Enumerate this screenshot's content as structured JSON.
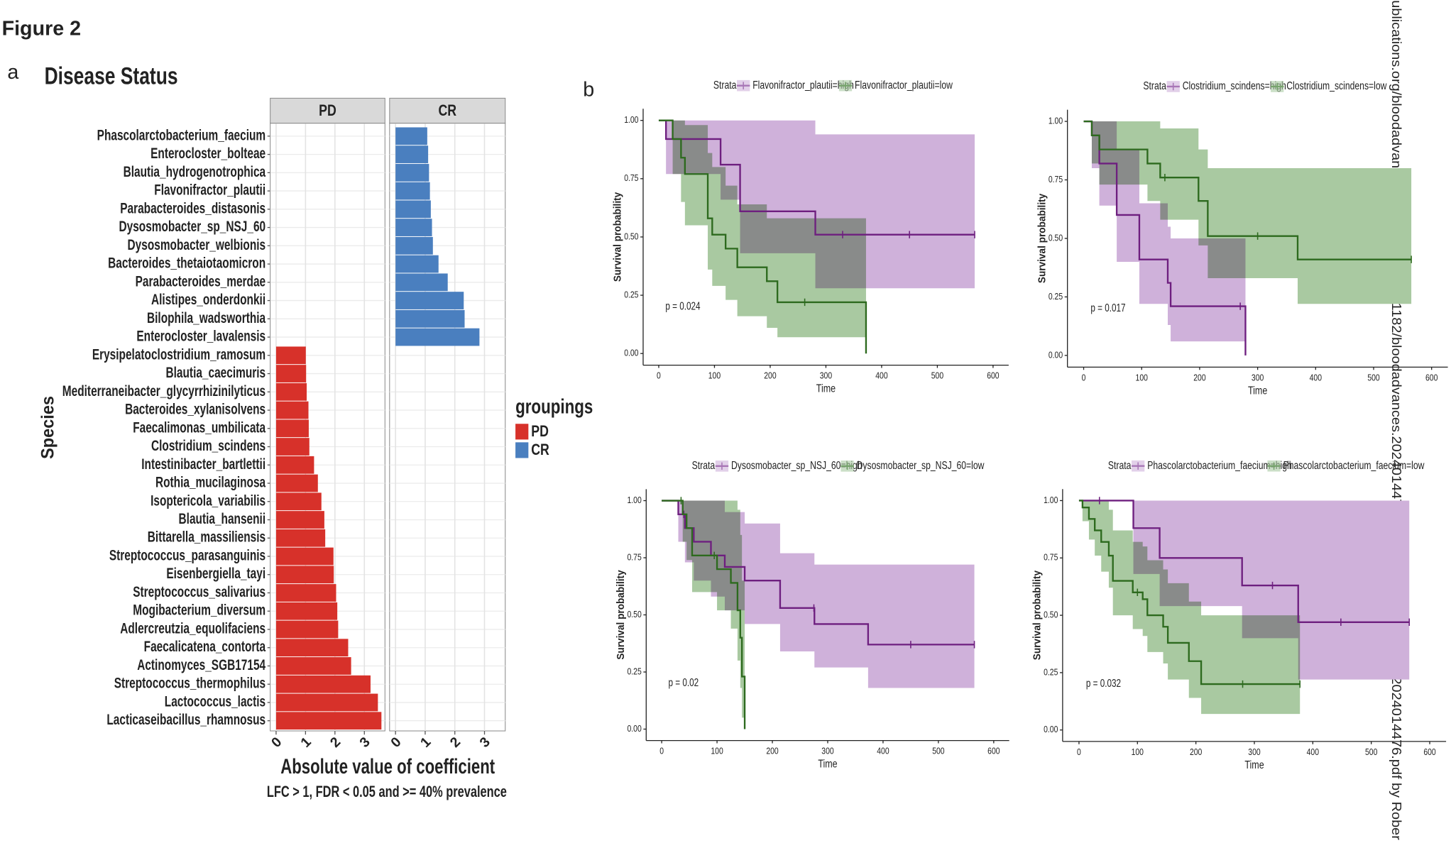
{
  "figure_title": "Figure 2",
  "watermark": "ublications.org/bloodadvances/article-pdf/doi/10.1182/bloodadvances.2024014476/2367737/bloodadvances.2024014476.pdf by Rober",
  "chart_data": [
    {
      "type": "bar",
      "orientation": "horizontal",
      "panel_label": "a",
      "title": "Disease Status",
      "facets": [
        "PD",
        "CR"
      ],
      "categories": [
        "Phascolarctobacterium_faecium",
        "Enterocloster_bolteae",
        "Blautia_hydrogenotrophica",
        "Flavonifractor_plautii",
        "Parabacteroides_distasonis",
        "Dysosmobacter_sp_NSJ_60",
        "Dysosmobacter_welbionis",
        "Bacteroides_thetaiotaomicron",
        "Parabacteroides_merdae",
        "Alistipes_onderdonkii",
        "Bilophila_wadsworthia",
        "Enterocloster_lavalensis",
        "Erysipelatoclostridium_ramosum",
        "Blautia_caecimuris",
        "Mediterraneibacter_glycyrrhizinilyticus",
        "Bacteroides_xylanisolvens",
        "Faecalimonas_umbilicata",
        "Clostridium_scindens",
        "Intestinibacter_bartlettii",
        "Rothia_mucilaginosa",
        "Isoptericola_variabilis",
        "Blautia_hansenii",
        "Bittarella_massiliensis",
        "Streptococcus_parasanguinis",
        "Eisenbergiella_tayi",
        "Streptococcus_salivarius",
        "Mogibacterium_diversum",
        "Adlercreutzia_equolifaciens",
        "Faecalicatena_contorta",
        "Actinomyces_SGB17154",
        "Streptococcus_thermophilus",
        "Lactococcus_lactis",
        "Lacticaseibacillus_rhamnosus"
      ],
      "series": [
        {
          "name": "PD",
          "color": "#d7312a",
          "values": [
            null,
            null,
            null,
            null,
            null,
            null,
            null,
            null,
            null,
            null,
            null,
            null,
            1.01,
            1.02,
            1.04,
            1.1,
            1.11,
            1.13,
            1.29,
            1.42,
            1.54,
            1.64,
            1.67,
            1.95,
            1.96,
            2.04,
            2.08,
            2.11,
            2.45,
            2.55,
            3.21,
            3.46,
            3.58
          ]
        },
        {
          "name": "CR",
          "color": "#4a7fbf",
          "values": [
            1.07,
            1.1,
            1.13,
            1.16,
            1.19,
            1.23,
            1.26,
            1.45,
            1.76,
            2.3,
            2.33,
            2.83,
            null,
            null,
            null,
            null,
            null,
            null,
            null,
            null,
            null,
            null,
            null,
            null,
            null,
            null,
            null,
            null,
            null,
            null,
            null,
            null,
            null
          ]
        }
      ],
      "xlim": [
        -0.2,
        3.7
      ],
      "xticks": [
        0,
        1,
        2,
        3
      ],
      "xlabel": "Absolute value of coefficient",
      "ylabel": "Species",
      "caption": "LFC > 1, FDR < 0.05 and >= 40% prevalence",
      "legend_title": "groupings",
      "grid": true
    },
    {
      "type": "survival",
      "panel_label": "b",
      "legend_title": "Strata",
      "annotation": "p = 0.024",
      "xlabel": "Time",
      "ylabel": "Survival probability",
      "xlim": [
        -28,
        628
      ],
      "ylim": [
        -0.05,
        1.05
      ],
      "xticks": [
        0,
        100,
        200,
        300,
        400,
        500,
        600
      ],
      "yticks": [
        {
          "value": 0,
          "label": "0.00"
        },
        0.25,
        {
          "value": 0.5,
          "label": "0.50"
        },
        0.75,
        {
          "value": 1,
          "label": "1.00"
        }
      ],
      "series": [
        {
          "name": "Flavonifractor_plautii=high",
          "color": "#6e1f7f",
          "band_color": "#cfb1da",
          "x": [
            0,
            13,
            111,
            146,
            281
          ],
          "values": [
            1,
            0.92,
            0.81,
            0.61,
            0.51
          ],
          "lower": [
            1,
            0.77,
            0.66,
            0.43,
            0.28
          ],
          "upper": [
            1,
            1,
            1,
            1,
            0.94
          ],
          "censored": [
            330,
            450,
            567
          ]
        },
        {
          "name": "Flavonifractor_plautii=low",
          "color": "#2d6a1e",
          "band_color": "#a9c9a1",
          "x": [
            0,
            25,
            40,
            47,
            88,
            96,
            120,
            141,
            194,
            213,
            372
          ],
          "values": [
            1,
            0.92,
            0.84,
            0.77,
            0.58,
            0.51,
            0.45,
            0.37,
            0.31,
            0.22,
            0
          ],
          "lower": [
            1,
            0.77,
            0.65,
            0.55,
            0.36,
            0.29,
            0.23,
            0.16,
            0.11,
            0.07,
            0
          ],
          "upper": [
            1,
            1,
            1,
            0.98,
            0.86,
            0.8,
            0.72,
            0.64,
            0.58,
            0.58,
            0.58
          ],
          "censored": [
            262
          ]
        }
      ]
    },
    {
      "type": "survival",
      "legend_title": "Strata",
      "annotation": "p = 0.017",
      "xlabel": "Time",
      "ylabel": "Survival probability",
      "xlim": [
        -28,
        628
      ],
      "ylim": [
        -0.05,
        1.05
      ],
      "xticks": [
        0,
        100,
        200,
        300,
        400,
        500,
        600
      ],
      "yticks": [
        {
          "value": 0,
          "label": "0.00"
        },
        0.25,
        {
          "value": 0.5,
          "label": "0.50"
        },
        0.75,
        {
          "value": 1,
          "label": "1.00"
        }
      ],
      "series": [
        {
          "name": "Clostridium_scindens=high",
          "color": "#6e1f7f",
          "band_color": "#cfb1da",
          "x": [
            0,
            14,
            27,
            57,
            96,
            145,
            150,
            279
          ],
          "values": [
            1,
            0.94,
            0.82,
            0.6,
            0.41,
            0.31,
            0.21,
            0
          ],
          "lower": [
            1,
            0.8,
            0.64,
            0.4,
            0.22,
            0.13,
            0.06,
            0
          ],
          "upper": [
            1,
            1,
            1,
            0.88,
            0.65,
            0.55,
            0.5,
            0.5
          ],
          "censored": [
            270
          ]
        },
        {
          "name": "Clostridium_scindens=low",
          "color": "#2d6a1e",
          "band_color": "#a9c9a1",
          "x": [
            0,
            14,
            27,
            110,
            132,
            198,
            214,
            369
          ],
          "values": [
            1,
            0.94,
            0.88,
            0.82,
            0.76,
            0.66,
            0.51,
            0.41
          ],
          "lower": [
            1,
            0.82,
            0.73,
            0.66,
            0.58,
            0.47,
            0.33,
            0.22
          ],
          "upper": [
            1,
            1,
            1,
            1,
            0.97,
            0.88,
            0.8,
            0.8
          ],
          "censored": [
            140,
            300,
            565
          ]
        }
      ]
    },
    {
      "type": "survival",
      "legend_title": "Strata",
      "annotation": "p = 0.02",
      "xlabel": "Time",
      "ylabel": "Survival probability",
      "xlim": [
        -28,
        628
      ],
      "ylim": [
        -0.05,
        1.05
      ],
      "xticks": [
        0,
        100,
        200,
        300,
        400,
        500,
        600
      ],
      "yticks": [
        {
          "value": 0,
          "label": "0.00"
        },
        0.25,
        {
          "value": 0.5,
          "label": "0.50"
        },
        0.75,
        {
          "value": 1,
          "label": "1.00"
        }
      ],
      "series": [
        {
          "name": "Dysosmobacter_sp_NSJ_60=high",
          "color": "#6e1f7f",
          "band_color": "#cfb1da",
          "x": [
            0,
            30,
            42,
            58,
            89,
            114,
            150,
            214,
            276,
            373
          ],
          "values": [
            1,
            0.94,
            0.88,
            0.82,
            0.76,
            0.71,
            0.65,
            0.53,
            0.46,
            0.37
          ],
          "lower": [
            1,
            0.82,
            0.73,
            0.65,
            0.58,
            0.52,
            0.46,
            0.34,
            0.27,
            0.18
          ],
          "upper": [
            1,
            1,
            1,
            1,
            1,
            0.95,
            0.9,
            0.77,
            0.72,
            0.72
          ],
          "censored": [
            40,
            275,
            450,
            565
          ]
        },
        {
          "name": "Dysosmobacter_sp_NSJ_60=low",
          "color": "#2d6a1e",
          "band_color": "#a9c9a1",
          "x": [
            0,
            38,
            45,
            55,
            100,
            125,
            137,
            142,
            145,
            150
          ],
          "values": [
            1,
            0.94,
            0.88,
            0.76,
            0.7,
            0.64,
            0.52,
            0.4,
            0.23,
            0
          ],
          "lower": [
            1,
            0.82,
            0.74,
            0.6,
            0.52,
            0.44,
            0.3,
            0.18,
            0.05,
            0
          ],
          "upper": [
            1,
            1,
            1,
            1,
            1,
            1,
            0.96,
            0.85,
            0.65,
            0.65
          ],
          "censored": [
            35,
            95
          ]
        }
      ]
    },
    {
      "type": "survival",
      "legend_title": "Strata",
      "annotation": "p = 0.032",
      "xlabel": "Time",
      "ylabel": "Survival probability",
      "xlim": [
        -28,
        628
      ],
      "ylim": [
        -0.05,
        1.05
      ],
      "xticks": [
        0,
        100,
        200,
        300,
        400,
        500,
        600
      ],
      "yticks": [
        {
          "value": 0,
          "label": "0.00"
        },
        0.25,
        {
          "value": 0.5,
          "label": "0.50"
        },
        0.75,
        {
          "value": 1,
          "label": "1.00"
        }
      ],
      "series": [
        {
          "name": "Phascolarctobacterium_faecium=high",
          "color": "#6e1f7f",
          "band_color": "#cfb1da",
          "x": [
            0,
            93,
            138,
            279,
            375
          ],
          "values": [
            1,
            0.88,
            0.75,
            0.63,
            0.47
          ],
          "lower": [
            1,
            0.68,
            0.54,
            0.4,
            0.22
          ],
          "upper": [
            1,
            1,
            1,
            1,
            1
          ],
          "censored": [
            35,
            331,
            448,
            565
          ]
        },
        {
          "name": "Phascolarctobacterium_faecium=low",
          "color": "#2d6a1e",
          "band_color": "#a9c9a1",
          "x": [
            0,
            6,
            17,
            27,
            38,
            51,
            58,
            92,
            109,
            117,
            144,
            152,
            188,
            209
          ],
          "values": [
            1,
            0.97,
            0.92,
            0.87,
            0.82,
            0.76,
            0.65,
            0.6,
            0.57,
            0.5,
            0.45,
            0.38,
            0.3,
            0.2
          ],
          "lower": [
            1,
            0.91,
            0.83,
            0.76,
            0.69,
            0.62,
            0.5,
            0.44,
            0.41,
            0.34,
            0.29,
            0.22,
            0.14,
            0.07
          ],
          "upper": [
            1,
            1,
            1,
            1,
            1,
            0.96,
            0.87,
            0.82,
            0.8,
            0.74,
            0.7,
            0.64,
            0.56,
            0.5
          ],
          "censored": [
            100,
            280,
            378
          ]
        }
      ]
    }
  ]
}
